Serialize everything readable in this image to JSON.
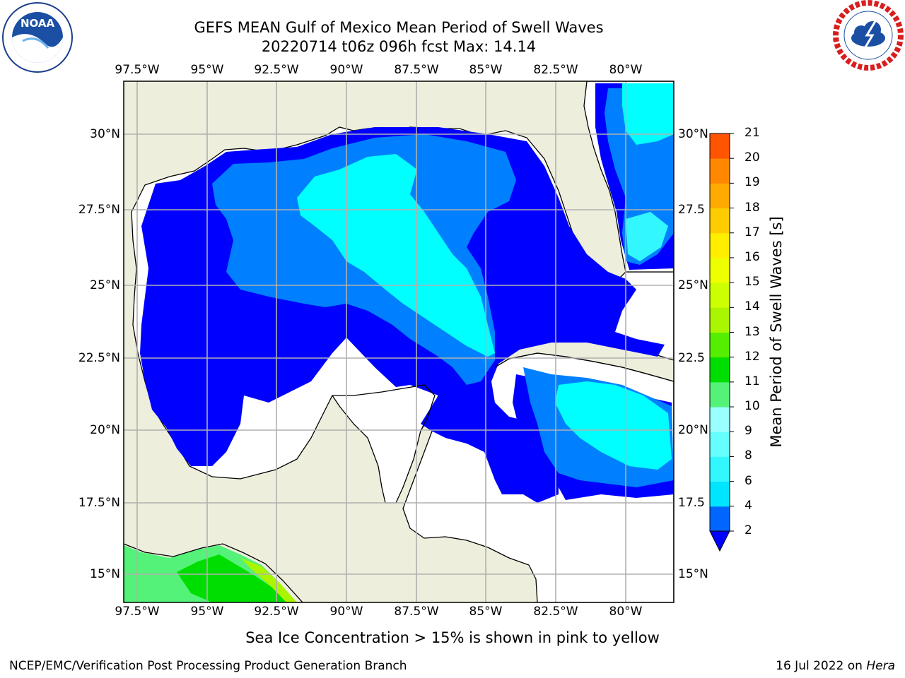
{
  "title_line1": "GEFS MEAN Gulf of Mexico Mean Period of Swell Waves",
  "title_line2": "20220714 t06z 096h fcst   Max: 14.14",
  "logos": {
    "left": "NOAA",
    "right": "National Weather Service"
  },
  "lon_labels_top": [
    "97.5°W",
    "95°W",
    "92.5°W",
    "90°W",
    "87.5°W",
    "85°W",
    "82.5°W",
    "80°W"
  ],
  "lon_labels_bottom": [
    "97.5°W",
    "95°W",
    "92.5°W",
    "90°W",
    "87.5°W",
    "85°W",
    "82.5°W",
    "80°W"
  ],
  "lat_labels_left": [
    "30°N",
    "27.5°N",
    "25°N",
    "22.5°N",
    "20°N",
    "17.5°N",
    "15°N"
  ],
  "lat_labels_right": [
    "30°N",
    "27.5",
    "25°N",
    "22.5",
    "20°N",
    "17.5",
    "15°N"
  ],
  "colorbar": {
    "label": "Mean Period of Swell Waves [s]",
    "ticks": [
      "2",
      "4",
      "6",
      "8",
      "9",
      "10",
      "11",
      "12",
      "13",
      "14",
      "15",
      "16",
      "17",
      "18",
      "19",
      "20",
      "21"
    ],
    "colors": [
      "#0066ff",
      "#00e5ff",
      "#33f7ff",
      "#66ffff",
      "#99ffff",
      "#55f27a",
      "#00dd00",
      "#55ee00",
      "#aaf500",
      "#ccff00",
      "#eeff00",
      "#ffee00",
      "#ffcc00",
      "#ffaa00",
      "#ff8800",
      "#ff5500",
      "#ff2200",
      "#ff0000"
    ],
    "extend_color": "#0000ff"
  },
  "map_colors": {
    "land": "#eeeedd",
    "ocean_low": "#0000ff",
    "ocean_mid": "#0080ff",
    "ocean_high": "#00ffff",
    "pacific_a": "#55f27a",
    "pacific_b": "#00dd00",
    "grid": "#b0b0b0"
  },
  "note": "Sea Ice Concentration > 15% is shown in pink to yellow",
  "footer_left": "NCEP/EMC/Verification Post Processing Product Generation Branch",
  "footer_right_prefix": "16 Jul 2022 on ",
  "footer_right_host": "Hera"
}
